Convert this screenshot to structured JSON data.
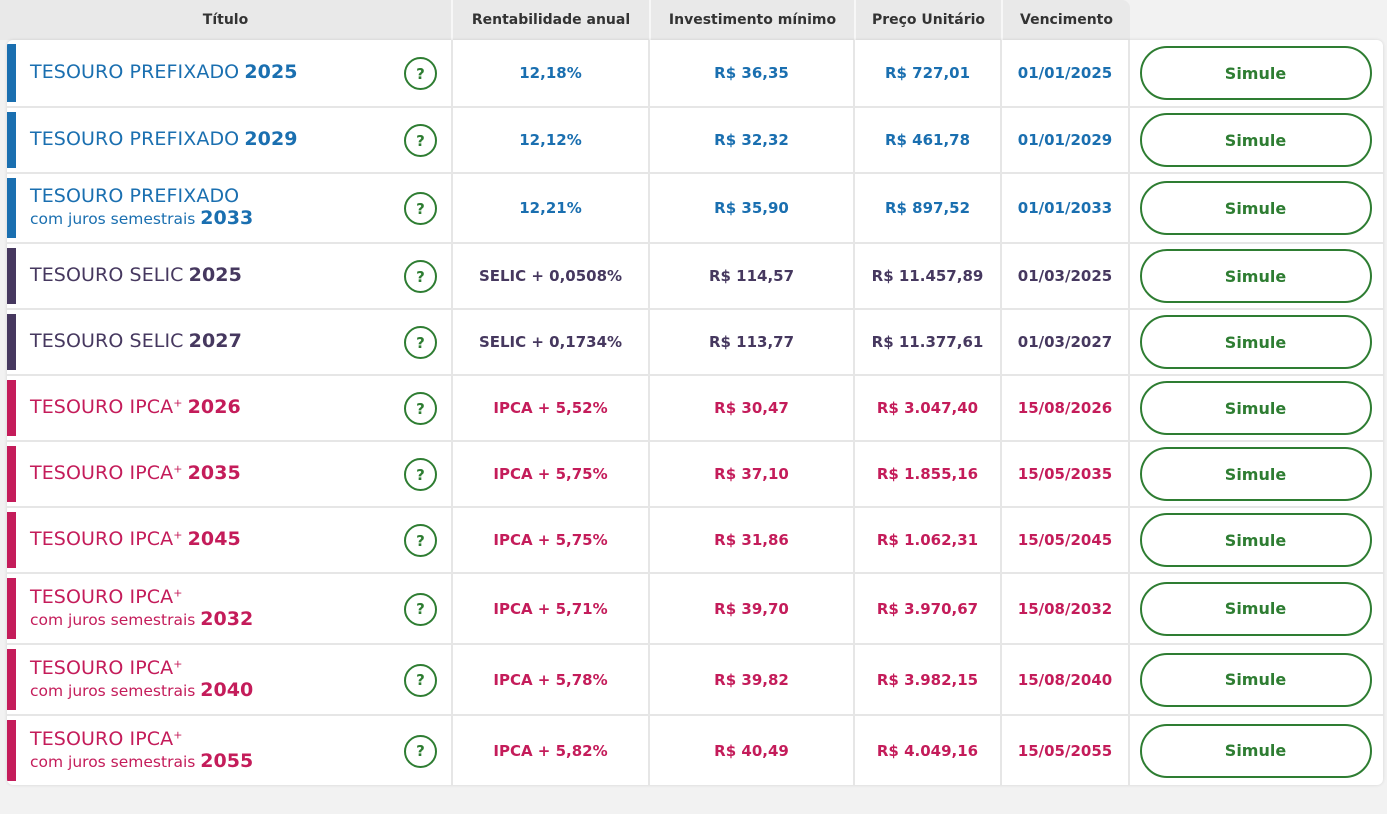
{
  "header": {
    "titulo": "Título",
    "rentabilidade": "Rentabilidade anual",
    "investimento": "Investimento mínimo",
    "preco": "Preço Unitário",
    "vencimento": "Vencimento"
  },
  "colors": {
    "prefixado": "#1a6fb0",
    "selic": "#46385f",
    "ipca": "#c41c5a",
    "button": "#2e7d32"
  },
  "help_icon_label": "?",
  "rows": [
    {
      "name": "TESOURO PREFIXADO",
      "year": "2025",
      "sub": "",
      "rentabilidade": "12,18%",
      "investimento": "R$ 36,35",
      "preco": "R$ 727,01",
      "vencimento": "01/01/2025",
      "button": "Simule"
    },
    {
      "name": "TESOURO PREFIXADO",
      "year": "2029",
      "sub": "",
      "rentabilidade": "12,12%",
      "investimento": "R$ 32,32",
      "preco": "R$ 461,78",
      "vencimento": "01/01/2029",
      "button": "Simule"
    },
    {
      "name": "TESOURO PREFIXADO",
      "year": "2033",
      "sub": "com juros semestrais",
      "rentabilidade": "12,21%",
      "investimento": "R$ 35,90",
      "preco": "R$ 897,52",
      "vencimento": "01/01/2033",
      "button": "Simule"
    },
    {
      "name": "TESOURO SELIC",
      "year": "2025",
      "sub": "",
      "rentabilidade": "SELIC + 0,0508%",
      "investimento": "R$ 114,57",
      "preco": "R$ 11.457,89",
      "vencimento": "01/03/2025",
      "button": "Simule"
    },
    {
      "name": "TESOURO SELIC",
      "year": "2027",
      "sub": "",
      "rentabilidade": "SELIC + 0,1734%",
      "investimento": "R$ 113,77",
      "preco": "R$ 11.377,61",
      "vencimento": "01/03/2027",
      "button": "Simule"
    },
    {
      "name": "TESOURO IPCA",
      "plus": "+",
      "year": "2026",
      "sub": "",
      "rentabilidade": "IPCA + 5,52%",
      "investimento": "R$ 30,47",
      "preco": "R$ 3.047,40",
      "vencimento": "15/08/2026",
      "button": "Simule"
    },
    {
      "name": "TESOURO IPCA",
      "plus": "+",
      "year": "2035",
      "sub": "",
      "rentabilidade": "IPCA + 5,75%",
      "investimento": "R$ 37,10",
      "preco": "R$ 1.855,16",
      "vencimento": "15/05/2035",
      "button": "Simule"
    },
    {
      "name": "TESOURO IPCA",
      "plus": "+",
      "year": "2045",
      "sub": "",
      "rentabilidade": "IPCA + 5,75%",
      "investimento": "R$ 31,86",
      "preco": "R$ 1.062,31",
      "vencimento": "15/05/2045",
      "button": "Simule"
    },
    {
      "name": "TESOURO IPCA",
      "plus": "+",
      "year": "2032",
      "sub": "com juros semestrais",
      "rentabilidade": "IPCA + 5,71%",
      "investimento": "R$ 39,70",
      "preco": "R$ 3.970,67",
      "vencimento": "15/08/2032",
      "button": "Simule"
    },
    {
      "name": "TESOURO IPCA",
      "plus": "+",
      "year": "2040",
      "sub": "com juros semestrais",
      "rentabilidade": "IPCA + 5,78%",
      "investimento": "R$ 39,82",
      "preco": "R$ 3.982,15",
      "vencimento": "15/08/2040",
      "button": "Simule"
    },
    {
      "name": "TESOURO IPCA",
      "plus": "+",
      "year": "2055",
      "sub": "com juros semestrais",
      "rentabilidade": "IPCA + 5,82%",
      "investimento": "R$ 40,49",
      "preco": "R$ 4.049,16",
      "vencimento": "15/05/2055",
      "button": "Simule"
    }
  ]
}
